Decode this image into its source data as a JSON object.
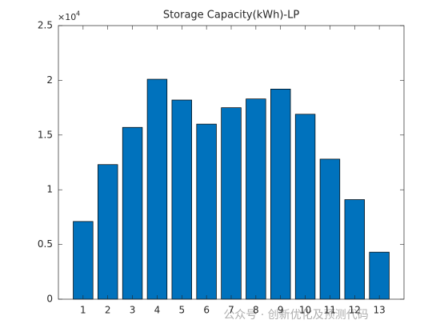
{
  "chart_data": {
    "type": "bar",
    "title": "Storage Capacity(kWh)-LP",
    "x": [
      1,
      2,
      3,
      4,
      5,
      6,
      7,
      8,
      9,
      10,
      11,
      12,
      13
    ],
    "values": [
      7100,
      12300,
      15700,
      20100,
      18200,
      16000,
      17500,
      18300,
      19200,
      16900,
      12800,
      9100,
      4300
    ],
    "color": "#0072bd",
    "xlim": [
      0,
      14
    ],
    "xticks": [
      1,
      2,
      3,
      4,
      5,
      6,
      7,
      8,
      9,
      10,
      11,
      12,
      13
    ],
    "ylim": [
      0,
      25000
    ],
    "yticks": [
      {
        "value": 0,
        "label": "0"
      },
      {
        "value": 5000,
        "label": "0.5"
      },
      {
        "value": 10000,
        "label": "1"
      },
      {
        "value": 15000,
        "label": "1.5"
      },
      {
        "value": 20000,
        "label": "2"
      },
      {
        "value": 25000,
        "label": "2.5"
      }
    ],
    "y_exponent_base": "×10",
    "y_exponent_power": "4",
    "watermark": "公众号 · 创新优化及预测代码"
  }
}
